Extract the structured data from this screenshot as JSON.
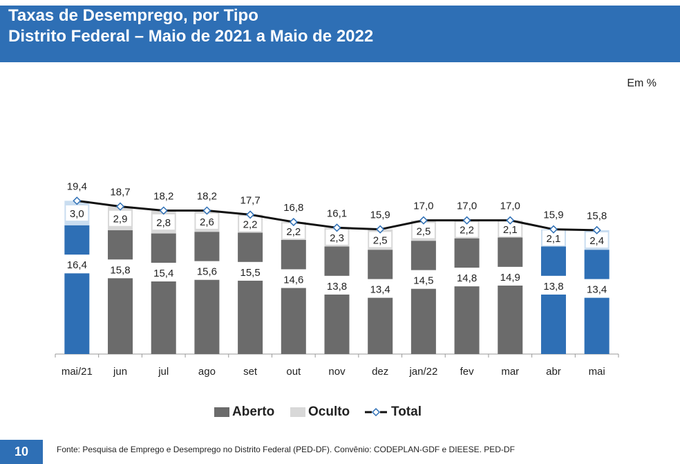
{
  "header": {
    "title_line1": "Taxas de Desemprego, por Tipo",
    "title_line2": "Distrito Federal – Maio de 2021 a Maio de 2022"
  },
  "unit_label": "Em %",
  "colors": {
    "header_bg": "#2e6fb5",
    "aberto": "#6b6b6b",
    "oculto": "#d8d8d8",
    "highlight_aberto": "#2e6fb5",
    "highlight_oculto": "#c9ddf0",
    "total_line": "#111111"
  },
  "chart_data": {
    "type": "bar",
    "stacked": true,
    "categories": [
      "mai/21",
      "jun",
      "jul",
      "ago",
      "set",
      "out",
      "nov",
      "dez",
      "jan/22",
      "fev",
      "mar",
      "abr",
      "mai"
    ],
    "highlighted": [
      "mai/21",
      "abr",
      "mai"
    ],
    "series": [
      {
        "name": "Aberto",
        "values": [
          16.4,
          15.8,
          15.4,
          15.6,
          15.5,
          14.6,
          13.8,
          13.4,
          14.5,
          14.8,
          14.9,
          13.8,
          13.4
        ],
        "labels": [
          "16,4",
          "15,8",
          "15,4",
          "15,6",
          "15,5",
          "14,6",
          "13,8",
          "13,4",
          "14,5",
          "14,8",
          "14,9",
          "13,8",
          "13,4"
        ]
      },
      {
        "name": "Oculto",
        "values": [
          3.0,
          2.9,
          2.8,
          2.6,
          2.2,
          2.2,
          2.3,
          2.5,
          2.5,
          2.2,
          2.1,
          2.1,
          2.4
        ],
        "labels": [
          "3,0",
          "2,9",
          "2,8",
          "2,6",
          "2,2",
          "2,2",
          "2,3",
          "2,5",
          "2,5",
          "2,2",
          "2,1",
          "2,1",
          "2,4"
        ]
      },
      {
        "name": "Total",
        "type": "line",
        "values": [
          19.4,
          18.7,
          18.2,
          18.2,
          17.7,
          16.8,
          16.1,
          15.9,
          17.0,
          17.0,
          17.0,
          15.9,
          15.8
        ],
        "labels": [
          "19,4",
          "18,7",
          "18,2",
          "18,2",
          "17,7",
          "16,8",
          "16,1",
          "15,9",
          "17,0",
          "17,0",
          "17,0",
          "15,9",
          "15,8"
        ]
      }
    ],
    "ylim": [
      0,
      20
    ]
  },
  "legend": {
    "aberto": "Aberto",
    "oculto": "Oculto",
    "total": "Total"
  },
  "footer": {
    "page_number": "10",
    "source": "Fonte: Pesquisa de Emprego e Desemprego no Distrito Federal (PED-DF). Convênio: CODEPLAN-GDF e DIEESE. PED-DF"
  }
}
